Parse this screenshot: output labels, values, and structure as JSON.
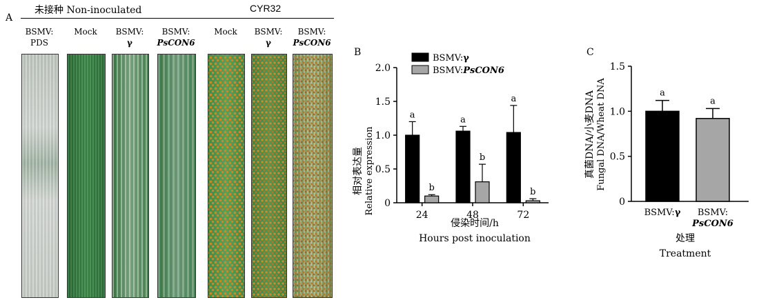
{
  "panel_a": {
    "label": "A",
    "header_left": "未接种 Non-inoculated",
    "header_right": "CYR32",
    "leaves": [
      {
        "line1": "BSMV:",
        "line2": "PDS",
        "italic": false,
        "style": "pds"
      },
      {
        "line1": "Mock",
        "line2": "",
        "italic": false,
        "style": "mock"
      },
      {
        "line1": "BSMV:",
        "line2": "γ",
        "italic": false,
        "style": "gamma"
      },
      {
        "line1": "BSMV:",
        "line2": "PsCON6",
        "italic": true,
        "style": "pscon6"
      },
      {
        "line1": "Mock",
        "line2": "",
        "italic": false,
        "style": "rust-mock"
      },
      {
        "line1": "BSMV:",
        "line2": "γ",
        "italic": false,
        "style": "rust-gamma"
      },
      {
        "line1": "BSMV:",
        "line2": "PsCON6",
        "italic": true,
        "style": "rust-pscon6"
      }
    ],
    "colors": {
      "leaf_dark": "#2f7a3a",
      "leaf_light": "#c8ccc8",
      "rust": "#c98a2a"
    }
  },
  "chart_data": [
    {
      "panel": "B",
      "type": "bar",
      "categories": [
        "24",
        "48",
        "72"
      ],
      "series": [
        {
          "name_prefix": "BSMV:",
          "name_suffix": "γ",
          "italic": false,
          "color": "#000000",
          "values": [
            1.0,
            1.06,
            1.04
          ],
          "errors": [
            0.2,
            0.07,
            0.4
          ],
          "sig": [
            "a",
            "a",
            "a"
          ]
        },
        {
          "name_prefix": "BSMV:",
          "name_suffix": "PsCON6",
          "italic": true,
          "color": "#a6a6a6",
          "values": [
            0.1,
            0.31,
            0.03
          ],
          "errors": [
            0.02,
            0.26,
            0.03
          ],
          "sig": [
            "b",
            "b",
            "b"
          ]
        }
      ],
      "ylim": [
        0,
        2.0
      ],
      "yticks": [
        "0",
        "0.5",
        "1.0",
        "1.5",
        "2.0"
      ],
      "ylabel_cn": "相对表达量",
      "ylabel_en": "Relative expression",
      "xlabel_cn": "侵染时间/h",
      "xlabel_en": "Hours post inoculation"
    },
    {
      "panel": "C",
      "type": "bar",
      "categories": [
        "BSMV:γ",
        "BSMV:PsCON6"
      ],
      "category_labels": [
        {
          "line1": "BSMV:γ",
          "line2": "",
          "italic": false
        },
        {
          "line1": "BSMV:",
          "line2": "PsCON6",
          "italic": true
        }
      ],
      "values": [
        1.0,
        0.92
      ],
      "errors": [
        0.12,
        0.11
      ],
      "sig": [
        "a",
        "a"
      ],
      "colors": [
        "#000000",
        "#a6a6a6"
      ],
      "ylim": [
        0,
        1.5
      ],
      "yticks": [
        "0",
        "0.5",
        "1.0",
        "1.5"
      ],
      "ylabel_cn": "真菌DNA/小麦DNA",
      "ylabel_en": "Fungal DNA/Wheat DNA",
      "xlabel_cn": "处理",
      "xlabel_en": "Treatment"
    }
  ]
}
